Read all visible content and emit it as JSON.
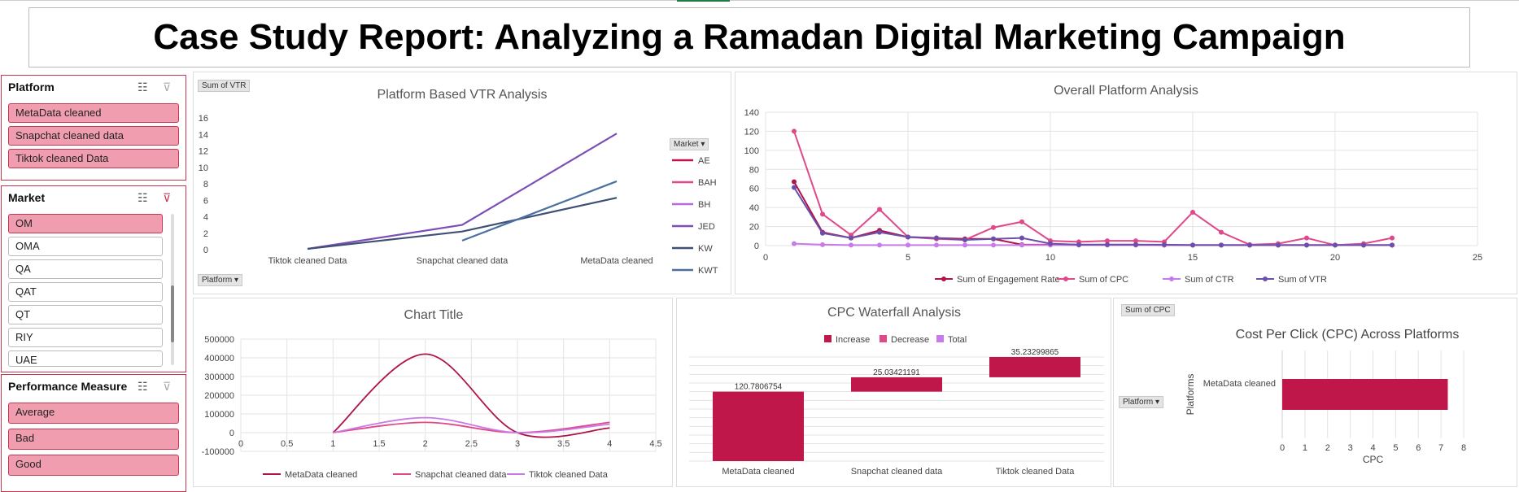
{
  "page_title": "Case Study Report: Analyzing a Ramadan Digital Marketing Campaign",
  "slicers": {
    "platform": {
      "title": "Platform",
      "items": [
        "MetaData cleaned",
        "Snapchat cleaned data",
        "Tiktok cleaned Data"
      ]
    },
    "market": {
      "title": "Market",
      "items": [
        "OM",
        "OMA",
        "QA",
        "QAT",
        "QT",
        "RIY",
        "UAE"
      ]
    },
    "performance": {
      "title": "Performance Measure",
      "items": [
        "Average",
        "Bad",
        "Good"
      ]
    }
  },
  "colors": {
    "accent": "#c2185b",
    "slicer_fill": "#f19db0",
    "slicer_border": "#c9344f"
  },
  "chart_data": [
    {
      "id": "vtr",
      "type": "line",
      "field_button": "Sum of VTR",
      "axis_button": "Platform",
      "legend_button": "Market",
      "title": "Platform Based VTR Analysis",
      "categories": [
        "Tiktok cleaned Data",
        "Snapchat cleaned data",
        "MetaData cleaned"
      ],
      "ylim": [
        0,
        16
      ],
      "yticks": [
        "0",
        "2",
        "4",
        "6",
        "8",
        "10",
        "12",
        "14",
        "16"
      ],
      "series": [
        {
          "name": "AE",
          "color": "#c0154a",
          "values": [
            null,
            null,
            null
          ]
        },
        {
          "name": "BAH",
          "color": "#e0488a",
          "values": [
            null,
            null,
            null
          ]
        },
        {
          "name": "BH",
          "color": "#b56be0",
          "values": [
            null,
            null,
            null
          ]
        },
        {
          "name": "JED",
          "color": "#7b4fb5",
          "values": [
            0.1,
            3.0,
            14.1
          ]
        },
        {
          "name": "KW",
          "color": "#3f4f75",
          "values": [
            0.1,
            2.2,
            6.3
          ]
        },
        {
          "name": "KWT",
          "color": "#4a70a0",
          "values": [
            null,
            1.1,
            8.3
          ]
        }
      ]
    },
    {
      "id": "overall",
      "type": "line",
      "title": "Overall Platform Analysis",
      "xlim": [
        0,
        25
      ],
      "xticks": [
        "0",
        "5",
        "10",
        "15",
        "20",
        "25"
      ],
      "ylim": [
        0,
        140
      ],
      "yticks": [
        "0",
        "20",
        "40",
        "60",
        "80",
        "100",
        "120",
        "140"
      ],
      "x": [
        1,
        2,
        3,
        4,
        5,
        6,
        7,
        8,
        9,
        10,
        11,
        12,
        13,
        14,
        15,
        16,
        17,
        18,
        19,
        20,
        21,
        22
      ],
      "series": [
        {
          "name": "Sum of Engagement Rate",
          "color": "#b0134a",
          "values": [
            67,
            14,
            8,
            16,
            9,
            8,
            7,
            7,
            1,
            1,
            1,
            1,
            1,
            0.5,
            0.5,
            0.5,
            0.5,
            0.5,
            0.5,
            0.5,
            0.5,
            0.5
          ]
        },
        {
          "name": "Sum of CPC",
          "color": "#e0488a",
          "values": [
            120,
            33,
            11,
            38,
            9,
            7,
            6,
            19,
            25,
            5,
            4,
            5,
            5,
            4,
            35,
            14,
            1,
            2,
            8,
            0.5,
            2,
            8
          ]
        },
        {
          "name": "Sum of CTR",
          "color": "#c87ae8",
          "values": [
            2,
            1,
            0.5,
            0.5,
            0.5,
            0.5,
            0.5,
            0.5,
            0.5,
            0.5,
            0.5,
            0.5,
            0.5,
            0.5,
            0.5,
            0.5,
            0.5,
            0.5,
            0.5,
            0.5,
            0.5,
            0.5
          ]
        },
        {
          "name": "Sum of VTR",
          "color": "#6b4fa8",
          "values": [
            61,
            13,
            8,
            14,
            9,
            8,
            6,
            7,
            8,
            2,
            1,
            1,
            1,
            1,
            0.5,
            0.5,
            0.5,
            0.5,
            0.5,
            0.5,
            0.5,
            0.5
          ]
        }
      ]
    },
    {
      "id": "chart_title",
      "type": "line",
      "title": "Chart Title",
      "xlim": [
        0,
        4.5
      ],
      "xticks": [
        "0",
        "0.5",
        "1",
        "1.5",
        "2",
        "2.5",
        "3",
        "3.5",
        "4",
        "4.5"
      ],
      "ylim": [
        -100000,
        500000
      ],
      "yticks": [
        "-100000",
        "0",
        "100000",
        "200000",
        "300000",
        "400000",
        "500000"
      ],
      "x": [
        1,
        2,
        3,
        4
      ],
      "series": [
        {
          "name": "MetaData cleaned",
          "color": "#b0134a",
          "values": [
            0,
            420000,
            0,
            25000
          ]
        },
        {
          "name": "Snapchat cleaned data",
          "color": "#e0488a",
          "values": [
            0,
            55000,
            0,
            55000
          ]
        },
        {
          "name": "Tiktok cleaned Data",
          "color": "#c87ae8",
          "values": [
            0,
            80000,
            0,
            45000
          ]
        }
      ]
    },
    {
      "id": "waterfall",
      "type": "bar",
      "title": "CPC Waterfall Analysis",
      "legend": [
        {
          "name": "Increase",
          "color": "#c0174a"
        },
        {
          "name": "Decrease",
          "color": "#e0488a"
        },
        {
          "name": "Total",
          "color": "#c87ae8"
        }
      ],
      "categories": [
        "MetaData cleaned",
        "Snapchat cleaned data",
        "Tiktok cleaned Data"
      ],
      "values": [
        120.7806754,
        25.03421191,
        35.23299865
      ],
      "labels": [
        "120.7806754",
        "25.03421191",
        "35.23299865"
      ]
    },
    {
      "id": "cpc",
      "type": "bar",
      "field_button": "Sum of CPC",
      "axis_button": "Platform",
      "title": "Cost Per Click (CPC) Across Platforms",
      "categories": [
        "MetaData cleaned"
      ],
      "values": [
        7.3
      ],
      "xlim": [
        0,
        8
      ],
      "xticks": [
        "0",
        "1",
        "2",
        "3",
        "4",
        "5",
        "6",
        "7",
        "8"
      ],
      "xlabel": "CPC",
      "ylabel": "Platforms",
      "color": "#c0174a"
    }
  ]
}
